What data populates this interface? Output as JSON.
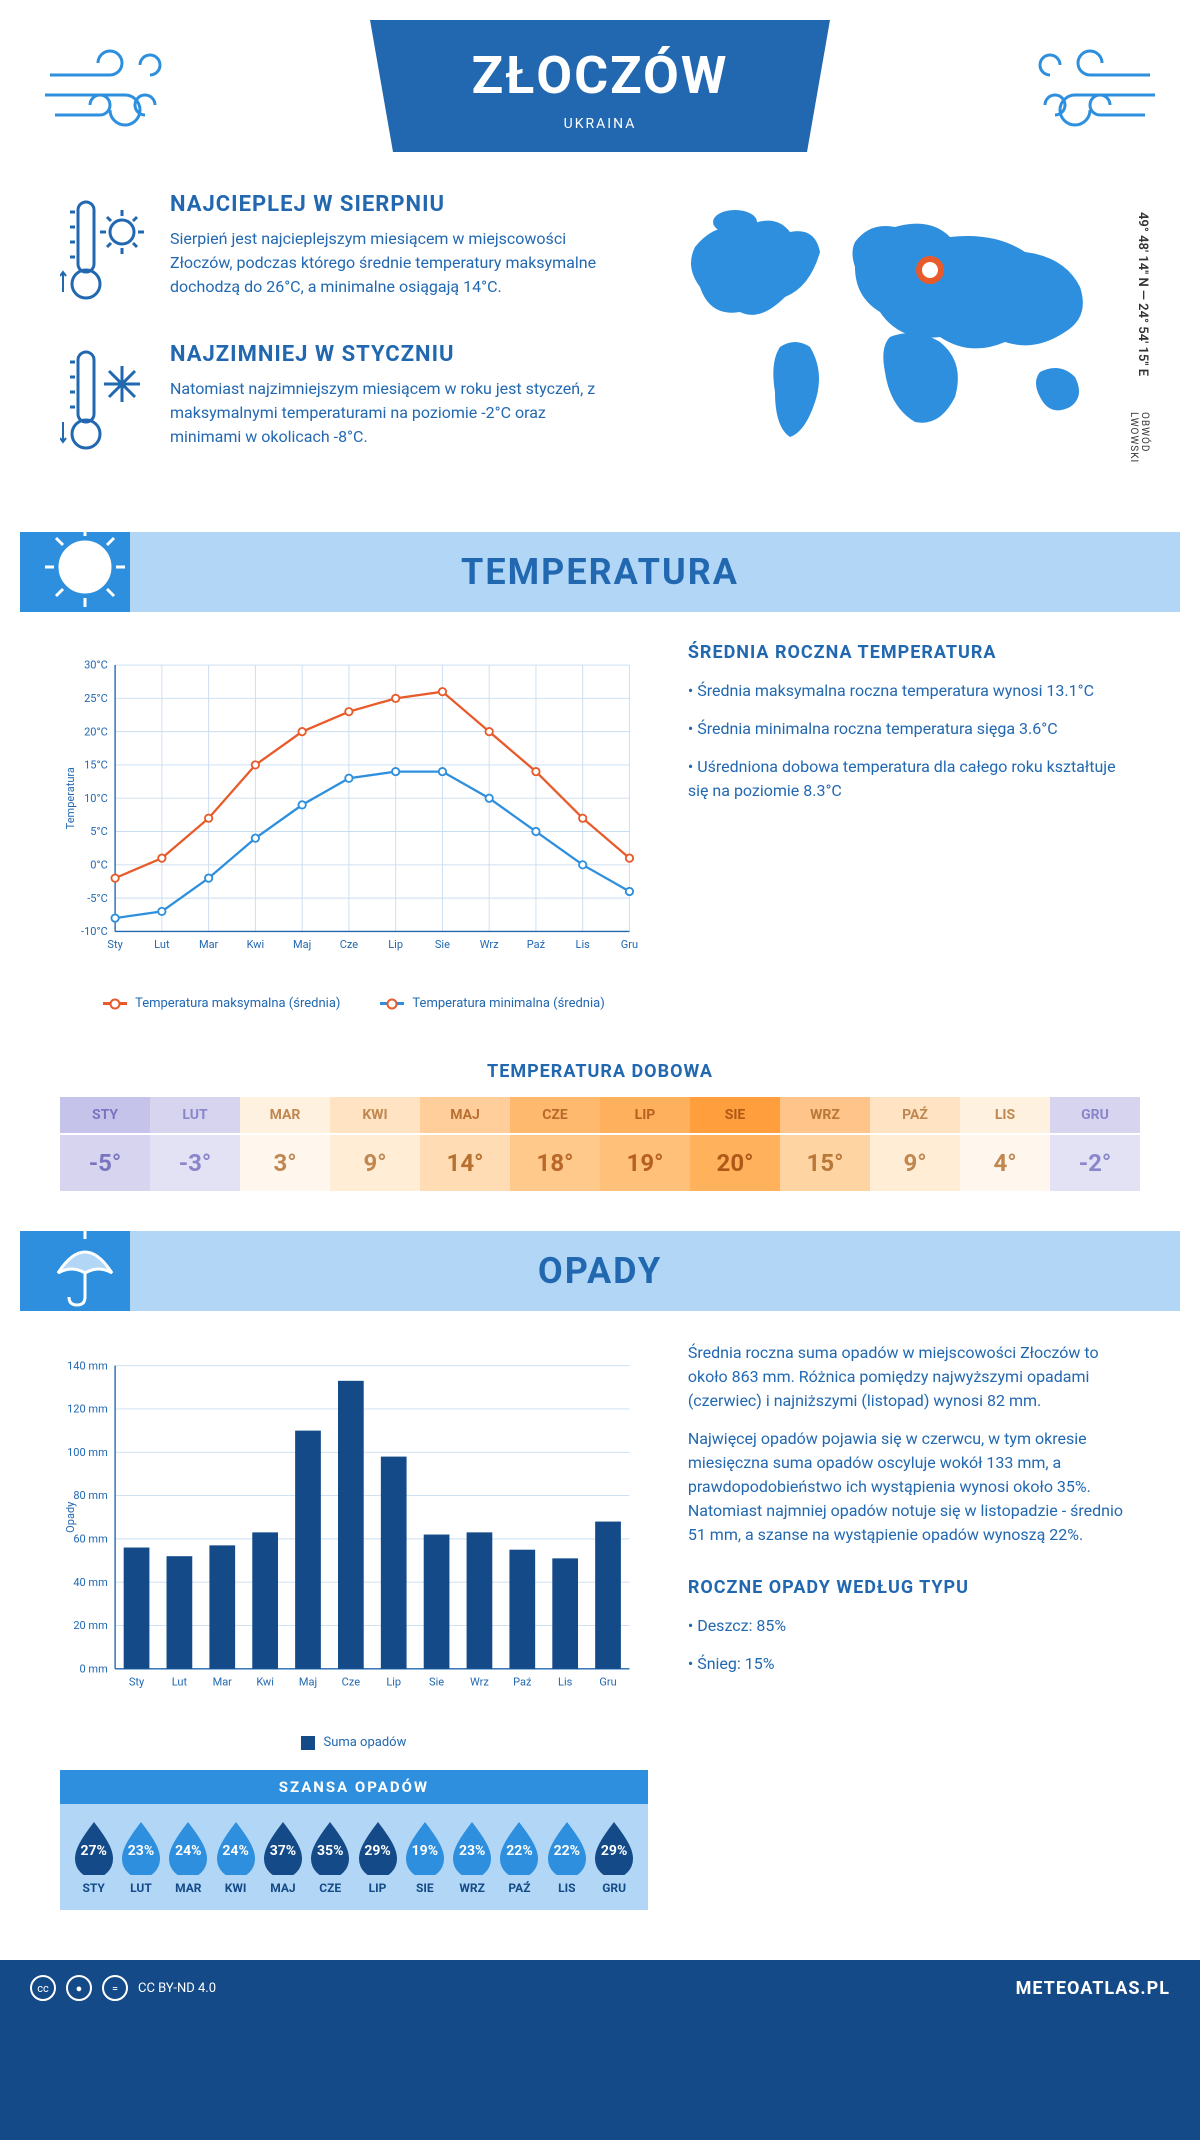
{
  "header": {
    "city": "ZŁOCZÓW",
    "country": "UKRAINA"
  },
  "coords": "49° 48' 14\" N — 24° 54' 15\" E",
  "region": "OBWÓD LWOWSKI",
  "intro": {
    "hot": {
      "title": "NAJCIEPLEJ W SIERPNIU",
      "text": "Sierpień jest najcieplejszym miesiącem w miejscowości Złoczów, podczas którego średnie temperatury maksymalne dochodzą do 26°C, a minimalne osiągają 14°C."
    },
    "cold": {
      "title": "NAJZIMNIEJ W STYCZNIU",
      "text": "Natomiast najzimniejszym miesiącem w roku jest styczeń, z maksymalnymi temperaturami na poziomie -2°C oraz minimami w okolicach -8°C."
    }
  },
  "sections": {
    "temperature": "TEMPERATURA",
    "precip": "OPADY"
  },
  "months": [
    "Sty",
    "Lut",
    "Mar",
    "Kwi",
    "Maj",
    "Cze",
    "Lip",
    "Sie",
    "Wrz",
    "Paź",
    "Lis",
    "Gru"
  ],
  "months_upper": [
    "STY",
    "LUT",
    "MAR",
    "KWI",
    "MAJ",
    "CZE",
    "LIP",
    "SIE",
    "WRZ",
    "PAŹ",
    "LIS",
    "GRU"
  ],
  "temp_chart": {
    "max_series": [
      -2,
      1,
      7,
      15,
      20,
      23,
      25,
      26,
      20,
      14,
      7,
      1
    ],
    "min_series": [
      -8,
      -7,
      -2,
      4,
      9,
      13,
      14,
      14,
      10,
      5,
      0,
      -4
    ],
    "max_color": "#e85a2a",
    "min_color": "#2d8fdd",
    "ylim": [
      -10,
      30
    ],
    "ytick_step": 5,
    "ylabel": "Temperatura",
    "grid_color": "#c9ddf0",
    "legend_max": "Temperatura maksymalna (średnia)",
    "legend_min": "Temperatura minimalna (średnia)"
  },
  "temp_text": {
    "title": "ŚREDNIA ROCZNA TEMPERATURA",
    "bullets": [
      "• Średnia maksymalna roczna temperatura wynosi 13.1°C",
      "• Średnia minimalna roczna temperatura sięga 3.6°C",
      "• Uśredniona dobowa temperatura dla całego roku kształtuje się na poziomie 8.3°C"
    ]
  },
  "temp_table": {
    "title": "TEMPERATURA DOBOWA",
    "values": [
      "-5°",
      "-3°",
      "3°",
      "9°",
      "14°",
      "18°",
      "19°",
      "20°",
      "15°",
      "9°",
      "4°",
      "-2°"
    ],
    "header_colors": [
      "#c6c3ea",
      "#d6d4ef",
      "#fff1e0",
      "#ffe3c2",
      "#ffce9a",
      "#ffb96f",
      "#ffb05c",
      "#ff9e3c",
      "#ffc48a",
      "#ffe3c2",
      "#fff1e0",
      "#d6d4ef"
    ],
    "value_colors": [
      "#d6d4ef",
      "#e3e1f4",
      "#fff7ed",
      "#ffedd6",
      "#ffdcb3",
      "#ffc98b",
      "#ffc079",
      "#ffb15c",
      "#ffd4a3",
      "#ffedd6",
      "#fff7ed",
      "#e3e1f4"
    ],
    "text_colors": [
      "#7a75c0",
      "#8a86cc",
      "#c08850",
      "#c08850",
      "#b87030",
      "#b86828",
      "#b86020",
      "#b05818",
      "#b87838",
      "#c08850",
      "#c08850",
      "#8a86cc"
    ]
  },
  "precip_chart": {
    "values": [
      56,
      52,
      57,
      63,
      110,
      133,
      98,
      62,
      63,
      55,
      51,
      68
    ],
    "bar_color": "#134a87",
    "ylim": [
      0,
      140
    ],
    "ytick_step": 20,
    "ylabel": "Opady",
    "legend": "Suma opadów",
    "grid_color": "#c9ddf0"
  },
  "precip_text": {
    "p1": "Średnia roczna suma opadów w miejscowości Złoczów to około 863 mm. Różnica pomiędzy najwyższymi opadami (czerwiec) i najniższymi (listopad) wynosi 82 mm.",
    "p2": "Najwięcej opadów pojawia się w czerwcu, w tym okresie miesięczna suma opadów oscyluje wokół 133 mm, a prawdopodobieństwo ich wystąpienia wynosi około 35%. Natomiast najmniej opadów notuje się w listopadzie - średnio 51 mm, a szanse na wystąpienie opadów wynoszą 22%.",
    "type_title": "ROCZNE OPADY WEDŁUG TYPU",
    "type_b1": "• Deszcz: 85%",
    "type_b2": "• Śnieg: 15%"
  },
  "chance": {
    "title": "SZANSA OPADÓW",
    "values": [
      "27%",
      "23%",
      "24%",
      "24%",
      "37%",
      "35%",
      "29%",
      "19%",
      "23%",
      "22%",
      "22%",
      "29%"
    ],
    "drop_colors": [
      "#134a87",
      "#2d8fdd",
      "#2d8fdd",
      "#2d8fdd",
      "#134a87",
      "#134a87",
      "#134a87",
      "#2d8fdd",
      "#2d8fdd",
      "#2d8fdd",
      "#2d8fdd",
      "#134a87"
    ]
  },
  "footer": {
    "license": "CC BY-ND 4.0",
    "site": "METEOATLAS.PL"
  }
}
